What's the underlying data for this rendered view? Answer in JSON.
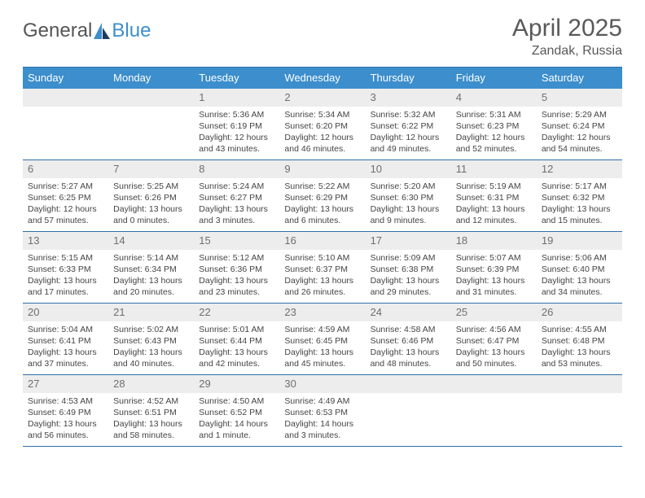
{
  "brand": {
    "part1": "General",
    "part2": "Blue",
    "accent": "#3c8ecc"
  },
  "title": "April 2025",
  "location": "Zandak, Russia",
  "header_bg": "#3c8ecc",
  "header_fg": "#ffffff",
  "rule_color": "#2f6fa7",
  "daynum_bg": "#ededed",
  "weekdays": [
    "Sunday",
    "Monday",
    "Tuesday",
    "Wednesday",
    "Thursday",
    "Friday",
    "Saturday"
  ],
  "weeks": [
    [
      null,
      null,
      {
        "n": "1",
        "sr": "5:36 AM",
        "ss": "6:19 PM",
        "dl": "12 hours and 43 minutes."
      },
      {
        "n": "2",
        "sr": "5:34 AM",
        "ss": "6:20 PM",
        "dl": "12 hours and 46 minutes."
      },
      {
        "n": "3",
        "sr": "5:32 AM",
        "ss": "6:22 PM",
        "dl": "12 hours and 49 minutes."
      },
      {
        "n": "4",
        "sr": "5:31 AM",
        "ss": "6:23 PM",
        "dl": "12 hours and 52 minutes."
      },
      {
        "n": "5",
        "sr": "5:29 AM",
        "ss": "6:24 PM",
        "dl": "12 hours and 54 minutes."
      }
    ],
    [
      {
        "n": "6",
        "sr": "5:27 AM",
        "ss": "6:25 PM",
        "dl": "12 hours and 57 minutes."
      },
      {
        "n": "7",
        "sr": "5:25 AM",
        "ss": "6:26 PM",
        "dl": "13 hours and 0 minutes."
      },
      {
        "n": "8",
        "sr": "5:24 AM",
        "ss": "6:27 PM",
        "dl": "13 hours and 3 minutes."
      },
      {
        "n": "9",
        "sr": "5:22 AM",
        "ss": "6:29 PM",
        "dl": "13 hours and 6 minutes."
      },
      {
        "n": "10",
        "sr": "5:20 AM",
        "ss": "6:30 PM",
        "dl": "13 hours and 9 minutes."
      },
      {
        "n": "11",
        "sr": "5:19 AM",
        "ss": "6:31 PM",
        "dl": "13 hours and 12 minutes."
      },
      {
        "n": "12",
        "sr": "5:17 AM",
        "ss": "6:32 PM",
        "dl": "13 hours and 15 minutes."
      }
    ],
    [
      {
        "n": "13",
        "sr": "5:15 AM",
        "ss": "6:33 PM",
        "dl": "13 hours and 17 minutes."
      },
      {
        "n": "14",
        "sr": "5:14 AM",
        "ss": "6:34 PM",
        "dl": "13 hours and 20 minutes."
      },
      {
        "n": "15",
        "sr": "5:12 AM",
        "ss": "6:36 PM",
        "dl": "13 hours and 23 minutes."
      },
      {
        "n": "16",
        "sr": "5:10 AM",
        "ss": "6:37 PM",
        "dl": "13 hours and 26 minutes."
      },
      {
        "n": "17",
        "sr": "5:09 AM",
        "ss": "6:38 PM",
        "dl": "13 hours and 29 minutes."
      },
      {
        "n": "18",
        "sr": "5:07 AM",
        "ss": "6:39 PM",
        "dl": "13 hours and 31 minutes."
      },
      {
        "n": "19",
        "sr": "5:06 AM",
        "ss": "6:40 PM",
        "dl": "13 hours and 34 minutes."
      }
    ],
    [
      {
        "n": "20",
        "sr": "5:04 AM",
        "ss": "6:41 PM",
        "dl": "13 hours and 37 minutes."
      },
      {
        "n": "21",
        "sr": "5:02 AM",
        "ss": "6:43 PM",
        "dl": "13 hours and 40 minutes."
      },
      {
        "n": "22",
        "sr": "5:01 AM",
        "ss": "6:44 PM",
        "dl": "13 hours and 42 minutes."
      },
      {
        "n": "23",
        "sr": "4:59 AM",
        "ss": "6:45 PM",
        "dl": "13 hours and 45 minutes."
      },
      {
        "n": "24",
        "sr": "4:58 AM",
        "ss": "6:46 PM",
        "dl": "13 hours and 48 minutes."
      },
      {
        "n": "25",
        "sr": "4:56 AM",
        "ss": "6:47 PM",
        "dl": "13 hours and 50 minutes."
      },
      {
        "n": "26",
        "sr": "4:55 AM",
        "ss": "6:48 PM",
        "dl": "13 hours and 53 minutes."
      }
    ],
    [
      {
        "n": "27",
        "sr": "4:53 AM",
        "ss": "6:49 PM",
        "dl": "13 hours and 56 minutes."
      },
      {
        "n": "28",
        "sr": "4:52 AM",
        "ss": "6:51 PM",
        "dl": "13 hours and 58 minutes."
      },
      {
        "n": "29",
        "sr": "4:50 AM",
        "ss": "6:52 PM",
        "dl": "14 hours and 1 minute."
      },
      {
        "n": "30",
        "sr": "4:49 AM",
        "ss": "6:53 PM",
        "dl": "14 hours and 3 minutes."
      },
      null,
      null,
      null
    ]
  ],
  "labels": {
    "sunrise": "Sunrise:",
    "sunset": "Sunset:",
    "daylight": "Daylight:"
  }
}
